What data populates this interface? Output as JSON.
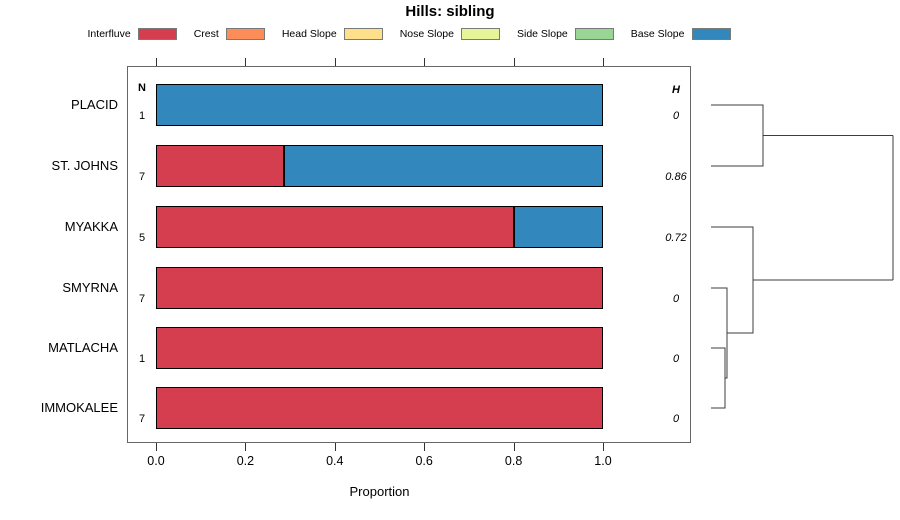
{
  "title": "Hills: sibling",
  "legend": {
    "items": [
      {
        "label": "Interfluve",
        "color": "#D53E4F"
      },
      {
        "label": "Crest",
        "color": "#FC8D59"
      },
      {
        "label": "Head Slope",
        "color": "#FEE08B"
      },
      {
        "label": "Nose Slope",
        "color": "#E6F598"
      },
      {
        "label": "Side Slope",
        "color": "#99D594"
      },
      {
        "label": "Base Slope",
        "color": "#3288BD"
      }
    ]
  },
  "columns": {
    "n_header": "N",
    "h_header": "H"
  },
  "chart_data": {
    "type": "bar",
    "orientation": "horizontal",
    "stacked": true,
    "title": "Hills: sibling",
    "xlabel": "Proportion",
    "xlim": [
      0.0,
      1.0
    ],
    "x_ticks": [
      "0.0",
      "0.2",
      "0.4",
      "0.6",
      "0.8",
      "1.0"
    ],
    "categories": [
      "Interfluve",
      "Crest",
      "Head Slope",
      "Nose Slope",
      "Side Slope",
      "Base Slope"
    ],
    "rows": [
      {
        "label": "PLACID",
        "n": "1",
        "h": "0",
        "segments": [
          {
            "category": "Base Slope",
            "value": 1.0
          }
        ]
      },
      {
        "label": "ST. JOHNS",
        "n": "7",
        "h": "0.86",
        "segments": [
          {
            "category": "Interfluve",
            "value": 0.286
          },
          {
            "category": "Base Slope",
            "value": 0.714
          }
        ]
      },
      {
        "label": "MYAKKA",
        "n": "5",
        "h": "0.72",
        "segments": [
          {
            "category": "Interfluve",
            "value": 0.8
          },
          {
            "category": "Base Slope",
            "value": 0.2
          }
        ]
      },
      {
        "label": "SMYRNA",
        "n": "7",
        "h": "0",
        "segments": [
          {
            "category": "Interfluve",
            "value": 1.0
          }
        ]
      },
      {
        "label": "MATLACHA",
        "n": "1",
        "h": "0",
        "segments": [
          {
            "category": "Interfluve",
            "value": 1.0
          }
        ]
      },
      {
        "label": "IMMOKALEE",
        "n": "7",
        "h": "0",
        "segments": [
          {
            "category": "Interfluve",
            "value": 1.0
          }
        ]
      }
    ],
    "dendrogram": {
      "position": "right",
      "leaf_order": [
        "PLACID",
        "ST. JOHNS",
        "MYAKKA",
        "SMYRNA",
        "MATLACHA",
        "IMMOKALEE"
      ],
      "merges_in_order": [
        [
          "MATLACHA",
          "IMMOKALEE"
        ],
        [
          "SMYRNA",
          "(MATLACHA,IMMOKALEE)"
        ],
        [
          "MYAKKA",
          "(SMYRNA,MATLACHA,IMMOKALEE)"
        ],
        [
          "PLACID",
          "ST. JOHNS"
        ],
        [
          "(PLACID,ST. JOHNS)",
          "(MYAKKA,SMYRNA,MATLACHA,IMMOKALEE)"
        ]
      ]
    }
  }
}
